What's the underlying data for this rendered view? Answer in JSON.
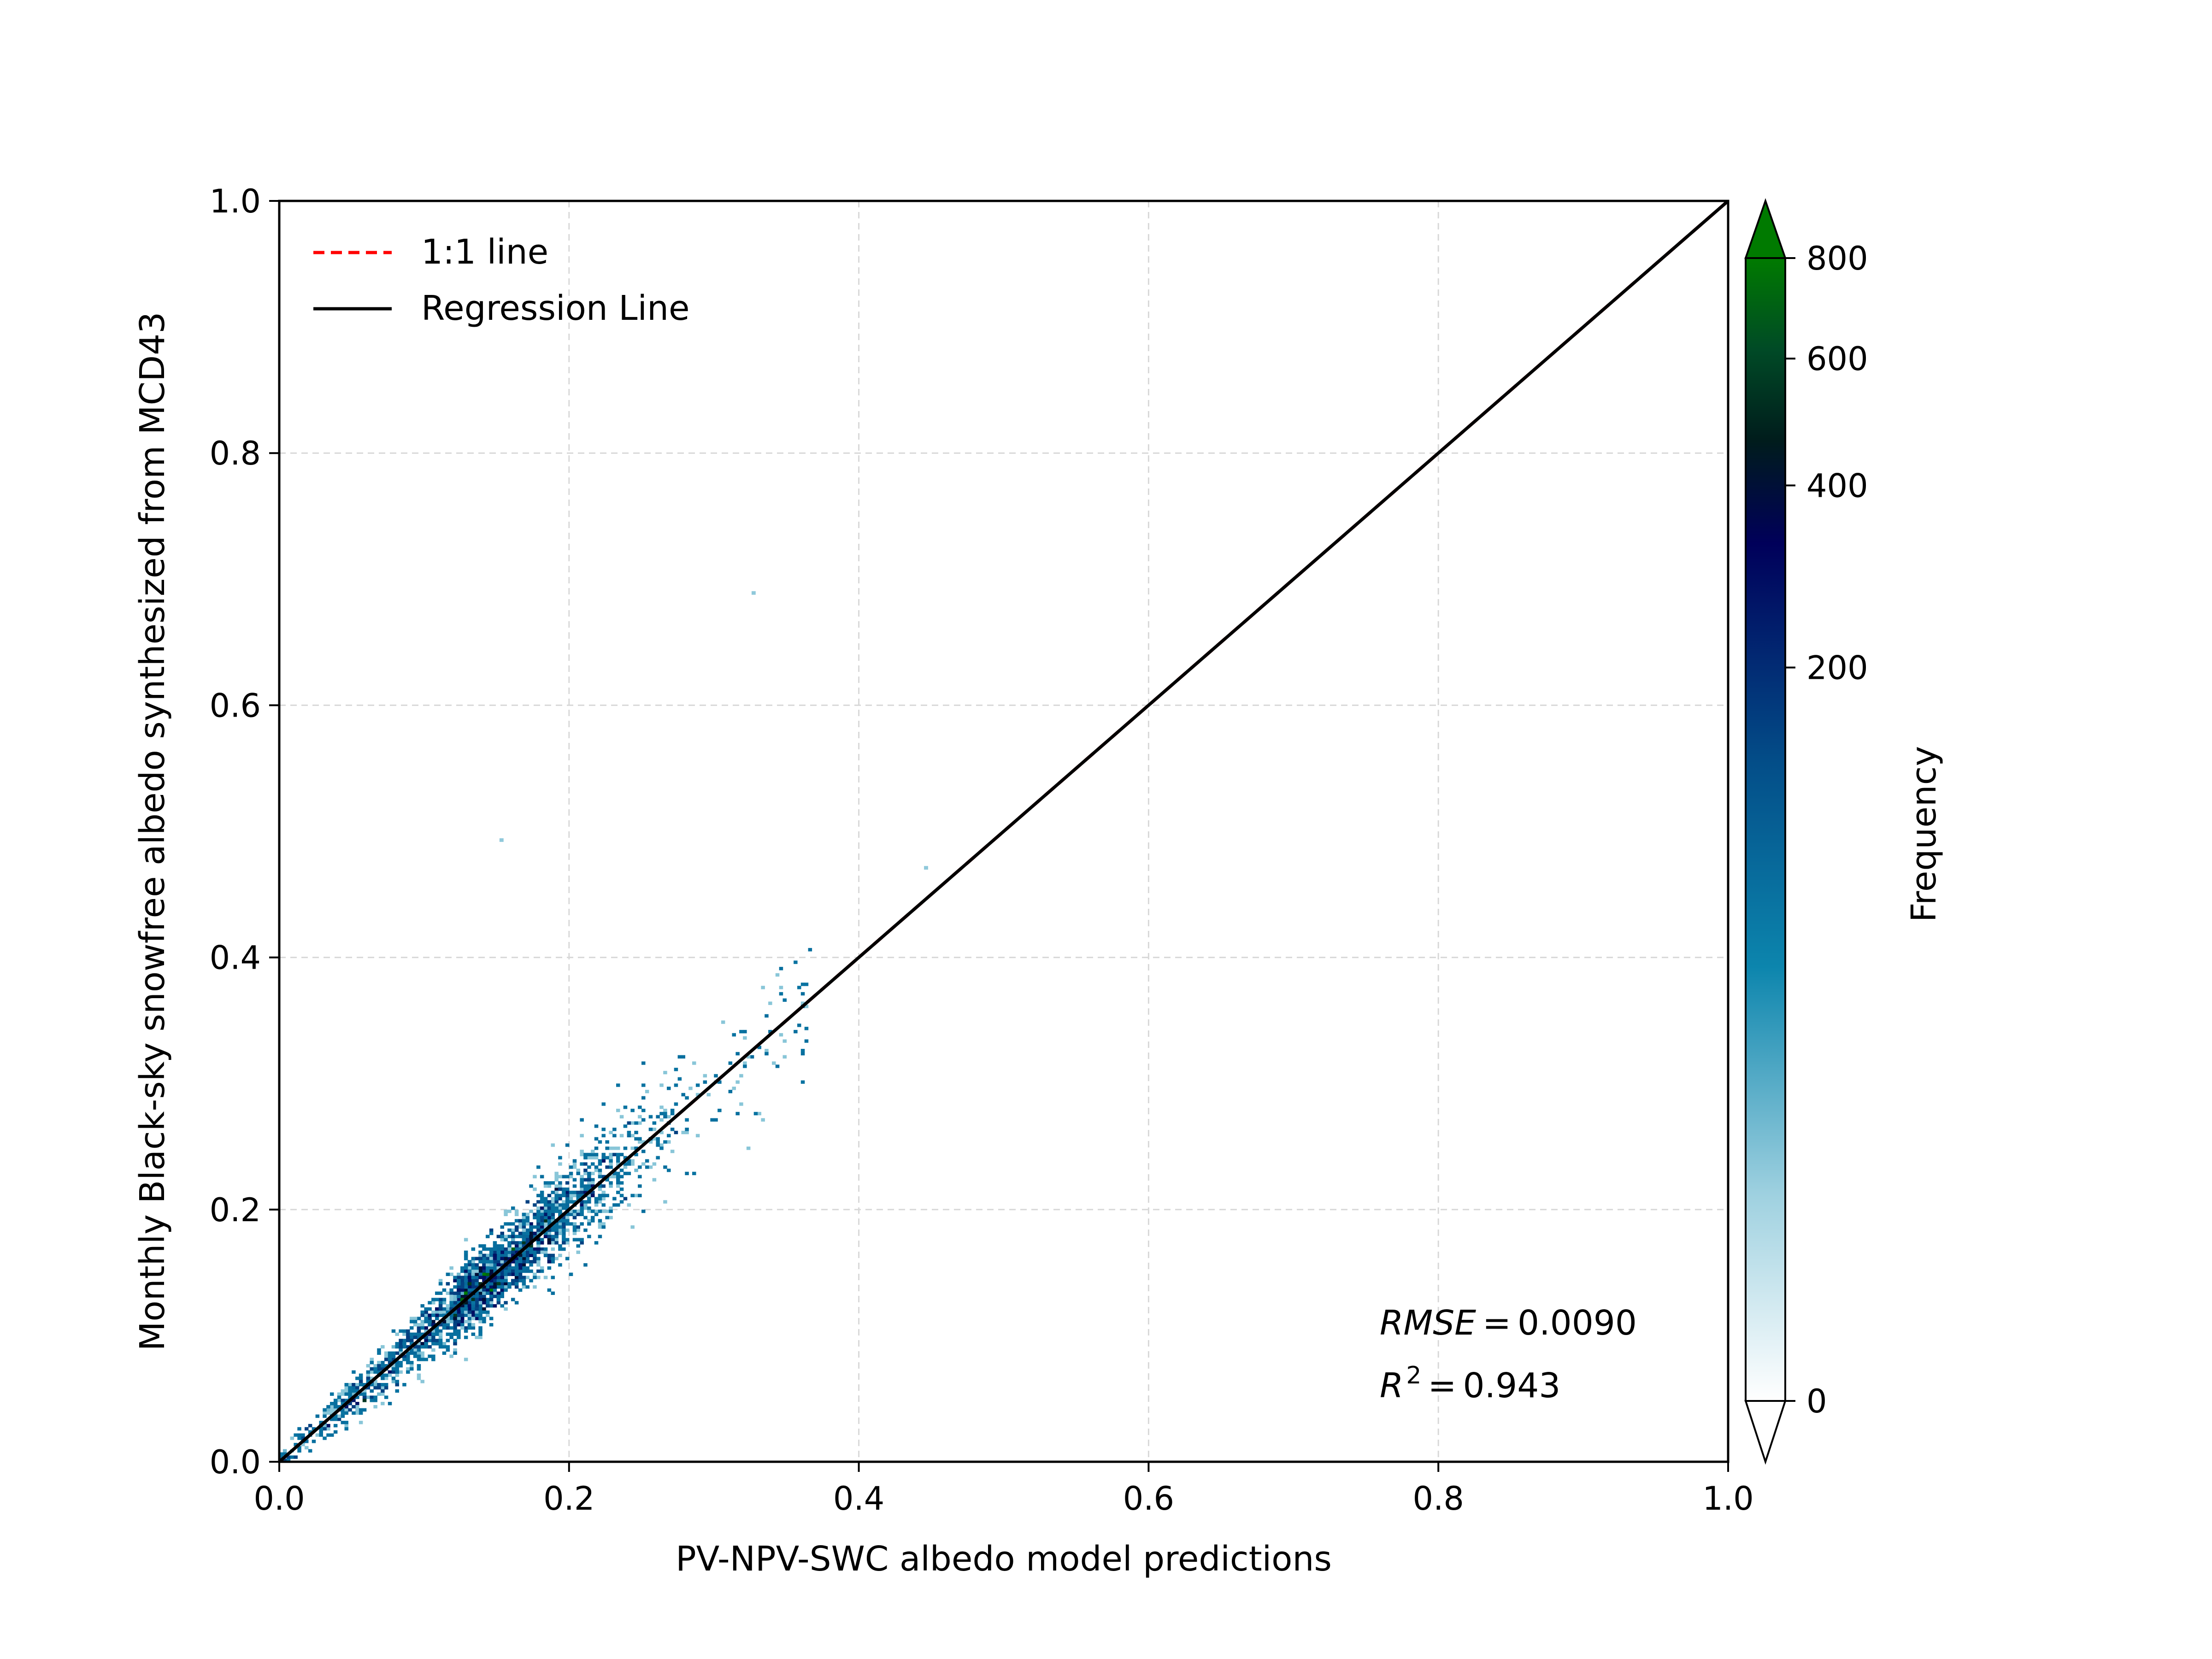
{
  "chart_data": {
    "type": "heatmap",
    "subtype": "2d-histogram-scatter",
    "xlabel": "PV-NPV-SWC albedo model predictions",
    "ylabel": "Monthly Black-sky snowfree albedo synthesized from MCD43",
    "xlim": [
      0.0,
      1.0
    ],
    "ylim": [
      0.0,
      1.0
    ],
    "xticks": [
      "0.0",
      "0.2",
      "0.4",
      "0.6",
      "0.8",
      "1.0"
    ],
    "yticks": [
      "0.0",
      "0.2",
      "0.4",
      "0.6",
      "0.8",
      "1.0"
    ],
    "grid": true,
    "legend": {
      "placement": "upper-left",
      "entries": [
        {
          "label": "1:1 line",
          "style": "dashed",
          "color": "#ff0000"
        },
        {
          "label": "Regression Line",
          "style": "solid",
          "color": "#000000"
        }
      ]
    },
    "lines": [
      {
        "name": "1:1 line",
        "x": [
          0.0,
          1.0
        ],
        "y": [
          0.0,
          1.0
        ]
      },
      {
        "name": "Regression Line",
        "x": [
          0.0,
          1.0
        ],
        "y": [
          0.0,
          1.0
        ]
      }
    ],
    "density": {
      "center_line": {
        "slope": 1.0,
        "intercept": 0.0
      },
      "x_range": [
        0.0,
        0.37
      ],
      "peak_x": 0.12,
      "peak_frequency": 800
    },
    "outliers": [
      [
        0.326,
        0.688
      ],
      [
        0.152,
        0.492
      ],
      [
        0.445,
        0.47
      ]
    ],
    "colorbar": {
      "label": "Frequency",
      "ticks": [
        "0",
        "200",
        "400",
        "600",
        "800"
      ],
      "tick_values": [
        0,
        200,
        400,
        600,
        800
      ],
      "scale": "power-compressed",
      "extend": "both",
      "colors": [
        "#ffffff",
        "#0c85ad",
        "#00005a",
        "#007a00"
      ]
    },
    "annotations": {
      "rmse_label": "RMSE",
      "rmse_value": "0.0090",
      "r2_label": "R",
      "r2_sup": "2",
      "r2_value": "0.943"
    }
  }
}
